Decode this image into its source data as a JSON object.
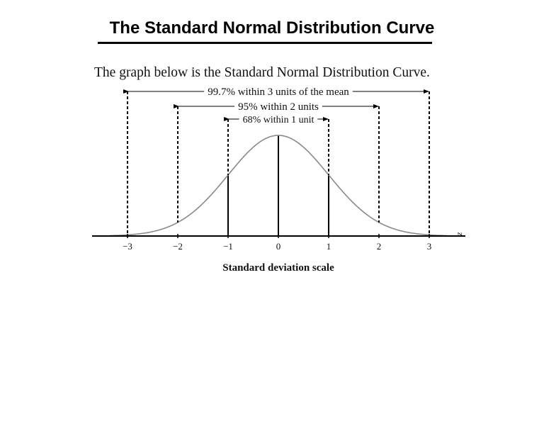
{
  "page": {
    "title": "The Standard Normal Distribution Curve",
    "intro": "The graph below is the Standard Normal Distribution Curve."
  },
  "chart_data": {
    "type": "line",
    "xlabel": "Standard deviation scale",
    "axis_variable": "z",
    "xlim": [
      -3.5,
      3.5
    ],
    "ticks": [
      -3,
      -2,
      -1,
      0,
      1,
      2,
      3
    ],
    "tick_labels": [
      "−3",
      "−2",
      "−1",
      "0",
      "1",
      "2",
      "3"
    ],
    "curve": "standard normal density",
    "curve_color": "#8a8a8a",
    "intervals": [
      {
        "label": "99.7% within 3 units of the mean",
        "sigma": 3
      },
      {
        "label": "95% within 2 units",
        "sigma": 2
      },
      {
        "label": "68% within 1 unit",
        "sigma": 1
      }
    ]
  }
}
